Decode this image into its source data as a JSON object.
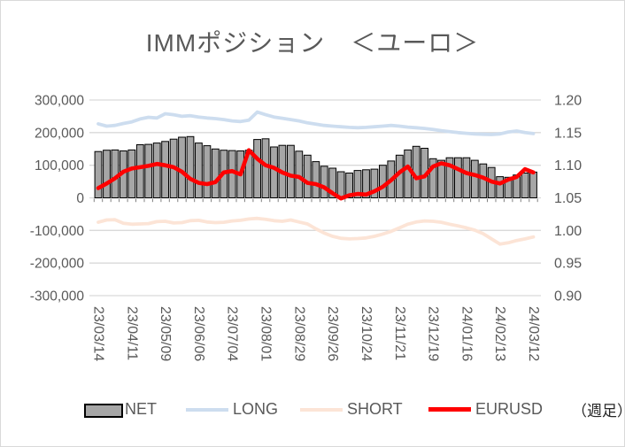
{
  "title": "IMMポジション　＜ユーロ＞",
  "period_note": "（週足）",
  "legend": {
    "items": [
      {
        "label": "NET",
        "swatch": "bar",
        "color": "#A6A6A6",
        "border_color": "#000000"
      },
      {
        "label": "LONG",
        "swatch": "line",
        "color": "#CDDDEF"
      },
      {
        "label": "SHORT",
        "swatch": "line",
        "color": "#FCE4D6"
      },
      {
        "label": "EURUSD",
        "swatch": "line",
        "color": "#FF0000"
      }
    ]
  },
  "axes": {
    "left_ticks": [
      "300,000",
      "200,000",
      "100,000",
      "0",
      "-100,000",
      "-200,000",
      "-300,000"
    ],
    "right_ticks": [
      "1.20",
      "1.15",
      "1.10",
      "1.05",
      "1.00",
      "0.95",
      "0.90"
    ],
    "x_ticks": [
      "23/03/14",
      "23/04/11",
      "23/05/09",
      "23/06/06",
      "23/07/04",
      "23/08/01",
      "23/08/29",
      "23/09/26",
      "23/10/24",
      "23/11/21",
      "23/12/19",
      "24/01/16",
      "24/02/13",
      "24/03/12"
    ]
  },
  "colors": {
    "grid": "#D9D9D9",
    "axis_text": "#595959",
    "title_text": "#595959",
    "note_text": "#262626",
    "bar_fill": "#A6A6A6",
    "bar_border": "#000000",
    "long_line": "#CDDDEF",
    "short_line": "#FCE4D6",
    "eurusd_line": "#FF0000",
    "category_tick": "#808080"
  },
  "chart_data": {
    "type": "bar",
    "subtype": "bar+line combo, dual axis",
    "title": "IMMポジション　＜ユーロ＞",
    "x_label_every": 4,
    "left_ylim": [
      -300000,
      300000
    ],
    "right_ylim": [
      0.9,
      1.2
    ],
    "grid": "horizontal only",
    "legend_position": "bottom",
    "x": [
      "23/03/14",
      "23/03/21",
      "23/03/28",
      "23/04/04",
      "23/04/11",
      "23/04/18",
      "23/04/25",
      "23/05/02",
      "23/05/09",
      "23/05/16",
      "23/05/23",
      "23/05/30",
      "23/06/06",
      "23/06/13",
      "23/06/20",
      "23/06/27",
      "23/07/04",
      "23/07/11",
      "23/07/18",
      "23/07/25",
      "23/08/01",
      "23/08/08",
      "23/08/15",
      "23/08/22",
      "23/08/29",
      "23/09/05",
      "23/09/12",
      "23/09/19",
      "23/09/26",
      "23/10/03",
      "23/10/10",
      "23/10/17",
      "23/10/24",
      "23/10/31",
      "23/11/07",
      "23/11/14",
      "23/11/21",
      "23/11/28",
      "23/12/05",
      "23/12/12",
      "23/12/19",
      "23/12/26",
      "24/01/02",
      "24/01/09",
      "24/01/16",
      "24/01/23",
      "24/01/30",
      "24/02/06",
      "24/02/13",
      "24/02/20",
      "24/02/27",
      "24/03/05",
      "24/03/12"
    ],
    "series": [
      {
        "name": "NET",
        "type": "bar",
        "axis": "left",
        "color": "#A6A6A6",
        "values": [
          142000,
          146000,
          147000,
          144000,
          147000,
          163000,
          164000,
          168000,
          173000,
          180000,
          186000,
          188000,
          168000,
          160000,
          150000,
          146000,
          145000,
          144000,
          146000,
          179000,
          181000,
          156000,
          161000,
          161000,
          143000,
          131000,
          111000,
          97000,
          91000,
          80000,
          76000,
          84000,
          86000,
          88000,
          100000,
          113000,
          131000,
          147000,
          158000,
          152000,
          120000,
          115000,
          123000,
          123000,
          123000,
          115000,
          104000,
          93000,
          65000,
          63000,
          70000,
          76000,
          79000
        ]
      },
      {
        "name": "LONG",
        "type": "line",
        "axis": "left",
        "color": "#CDDDEF",
        "values": [
          227000,
          220000,
          222000,
          228000,
          233000,
          242000,
          247000,
          245000,
          258000,
          255000,
          250000,
          252000,
          248000,
          245000,
          243000,
          240000,
          236000,
          234000,
          238000,
          263000,
          255000,
          248000,
          244000,
          240000,
          236000,
          230000,
          226000,
          222000,
          220000,
          218000,
          216000,
          215000,
          216000,
          218000,
          220000,
          222000,
          220000,
          217000,
          215000,
          213000,
          210000,
          206000,
          203000,
          200000,
          198000,
          196000,
          195000,
          194000,
          196000,
          202000,
          205000,
          200000,
          197000
        ]
      },
      {
        "name": "SHORT",
        "type": "line",
        "axis": "left",
        "color": "#FCE4D6",
        "values": [
          -75000,
          -68000,
          -67000,
          -78000,
          -81000,
          -80000,
          -79000,
          -73000,
          -72000,
          -77000,
          -76000,
          -70000,
          -69000,
          -74000,
          -76000,
          -75000,
          -71000,
          -69000,
          -65000,
          -63000,
          -66000,
          -70000,
          -72000,
          -68000,
          -74000,
          -80000,
          -95000,
          -108000,
          -118000,
          -124000,
          -126000,
          -125000,
          -123000,
          -118000,
          -111000,
          -103000,
          -92000,
          -81000,
          -74000,
          -71000,
          -72000,
          -75000,
          -81000,
          -86000,
          -92000,
          -99000,
          -110000,
          -126000,
          -142000,
          -138000,
          -131000,
          -126000,
          -120000
        ]
      },
      {
        "name": "EURUSD",
        "type": "line",
        "axis": "right",
        "color": "#FF0000",
        "values": [
          1.065,
          1.072,
          1.08,
          1.09,
          1.095,
          1.097,
          1.099,
          1.102,
          1.1,
          1.097,
          1.09,
          1.079,
          1.073,
          1.071,
          1.074,
          1.089,
          1.091,
          1.086,
          1.123,
          1.11,
          1.1,
          1.096,
          1.089,
          1.084,
          1.082,
          1.073,
          1.071,
          1.066,
          1.057,
          1.049,
          1.054,
          1.056,
          1.055,
          1.06,
          1.067,
          1.077,
          1.089,
          1.098,
          1.08,
          1.083,
          1.098,
          1.103,
          1.1,
          1.094,
          1.088,
          1.085,
          1.081,
          1.075,
          1.072,
          1.078,
          1.082,
          1.094,
          1.089
        ]
      }
    ]
  }
}
